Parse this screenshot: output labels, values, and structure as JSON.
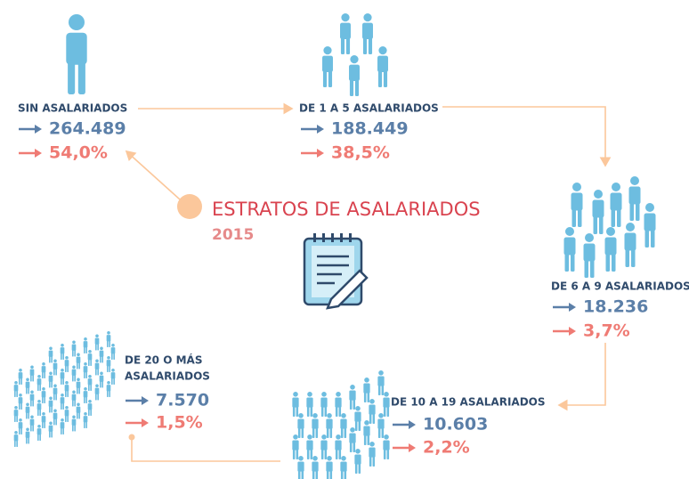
{
  "title": "ESTRATOS DE ASALARIADOS",
  "year": "2015",
  "strata": [
    {
      "label_lines": [
        "SIN ASALARIADOS"
      ],
      "count": "264.489",
      "percent": "54,0%"
    },
    {
      "label_lines": [
        "DE 1 A 5 ASALARIADOS"
      ],
      "count": "188.449",
      "percent": "38,5%"
    },
    {
      "label_lines": [
        "DE 6 A 9 ASALARIADOS"
      ],
      "count": "18.236",
      "percent": "3,7%"
    },
    {
      "label_lines": [
        "DE 10 A 19 ASALARIADOS"
      ],
      "count": "10.603",
      "percent": "2,2%"
    },
    {
      "label_lines": [
        "DE 20 O MÁS",
        "ASALARIADOS"
      ],
      "count": "7.570",
      "percent": "1,5%"
    }
  ]
}
